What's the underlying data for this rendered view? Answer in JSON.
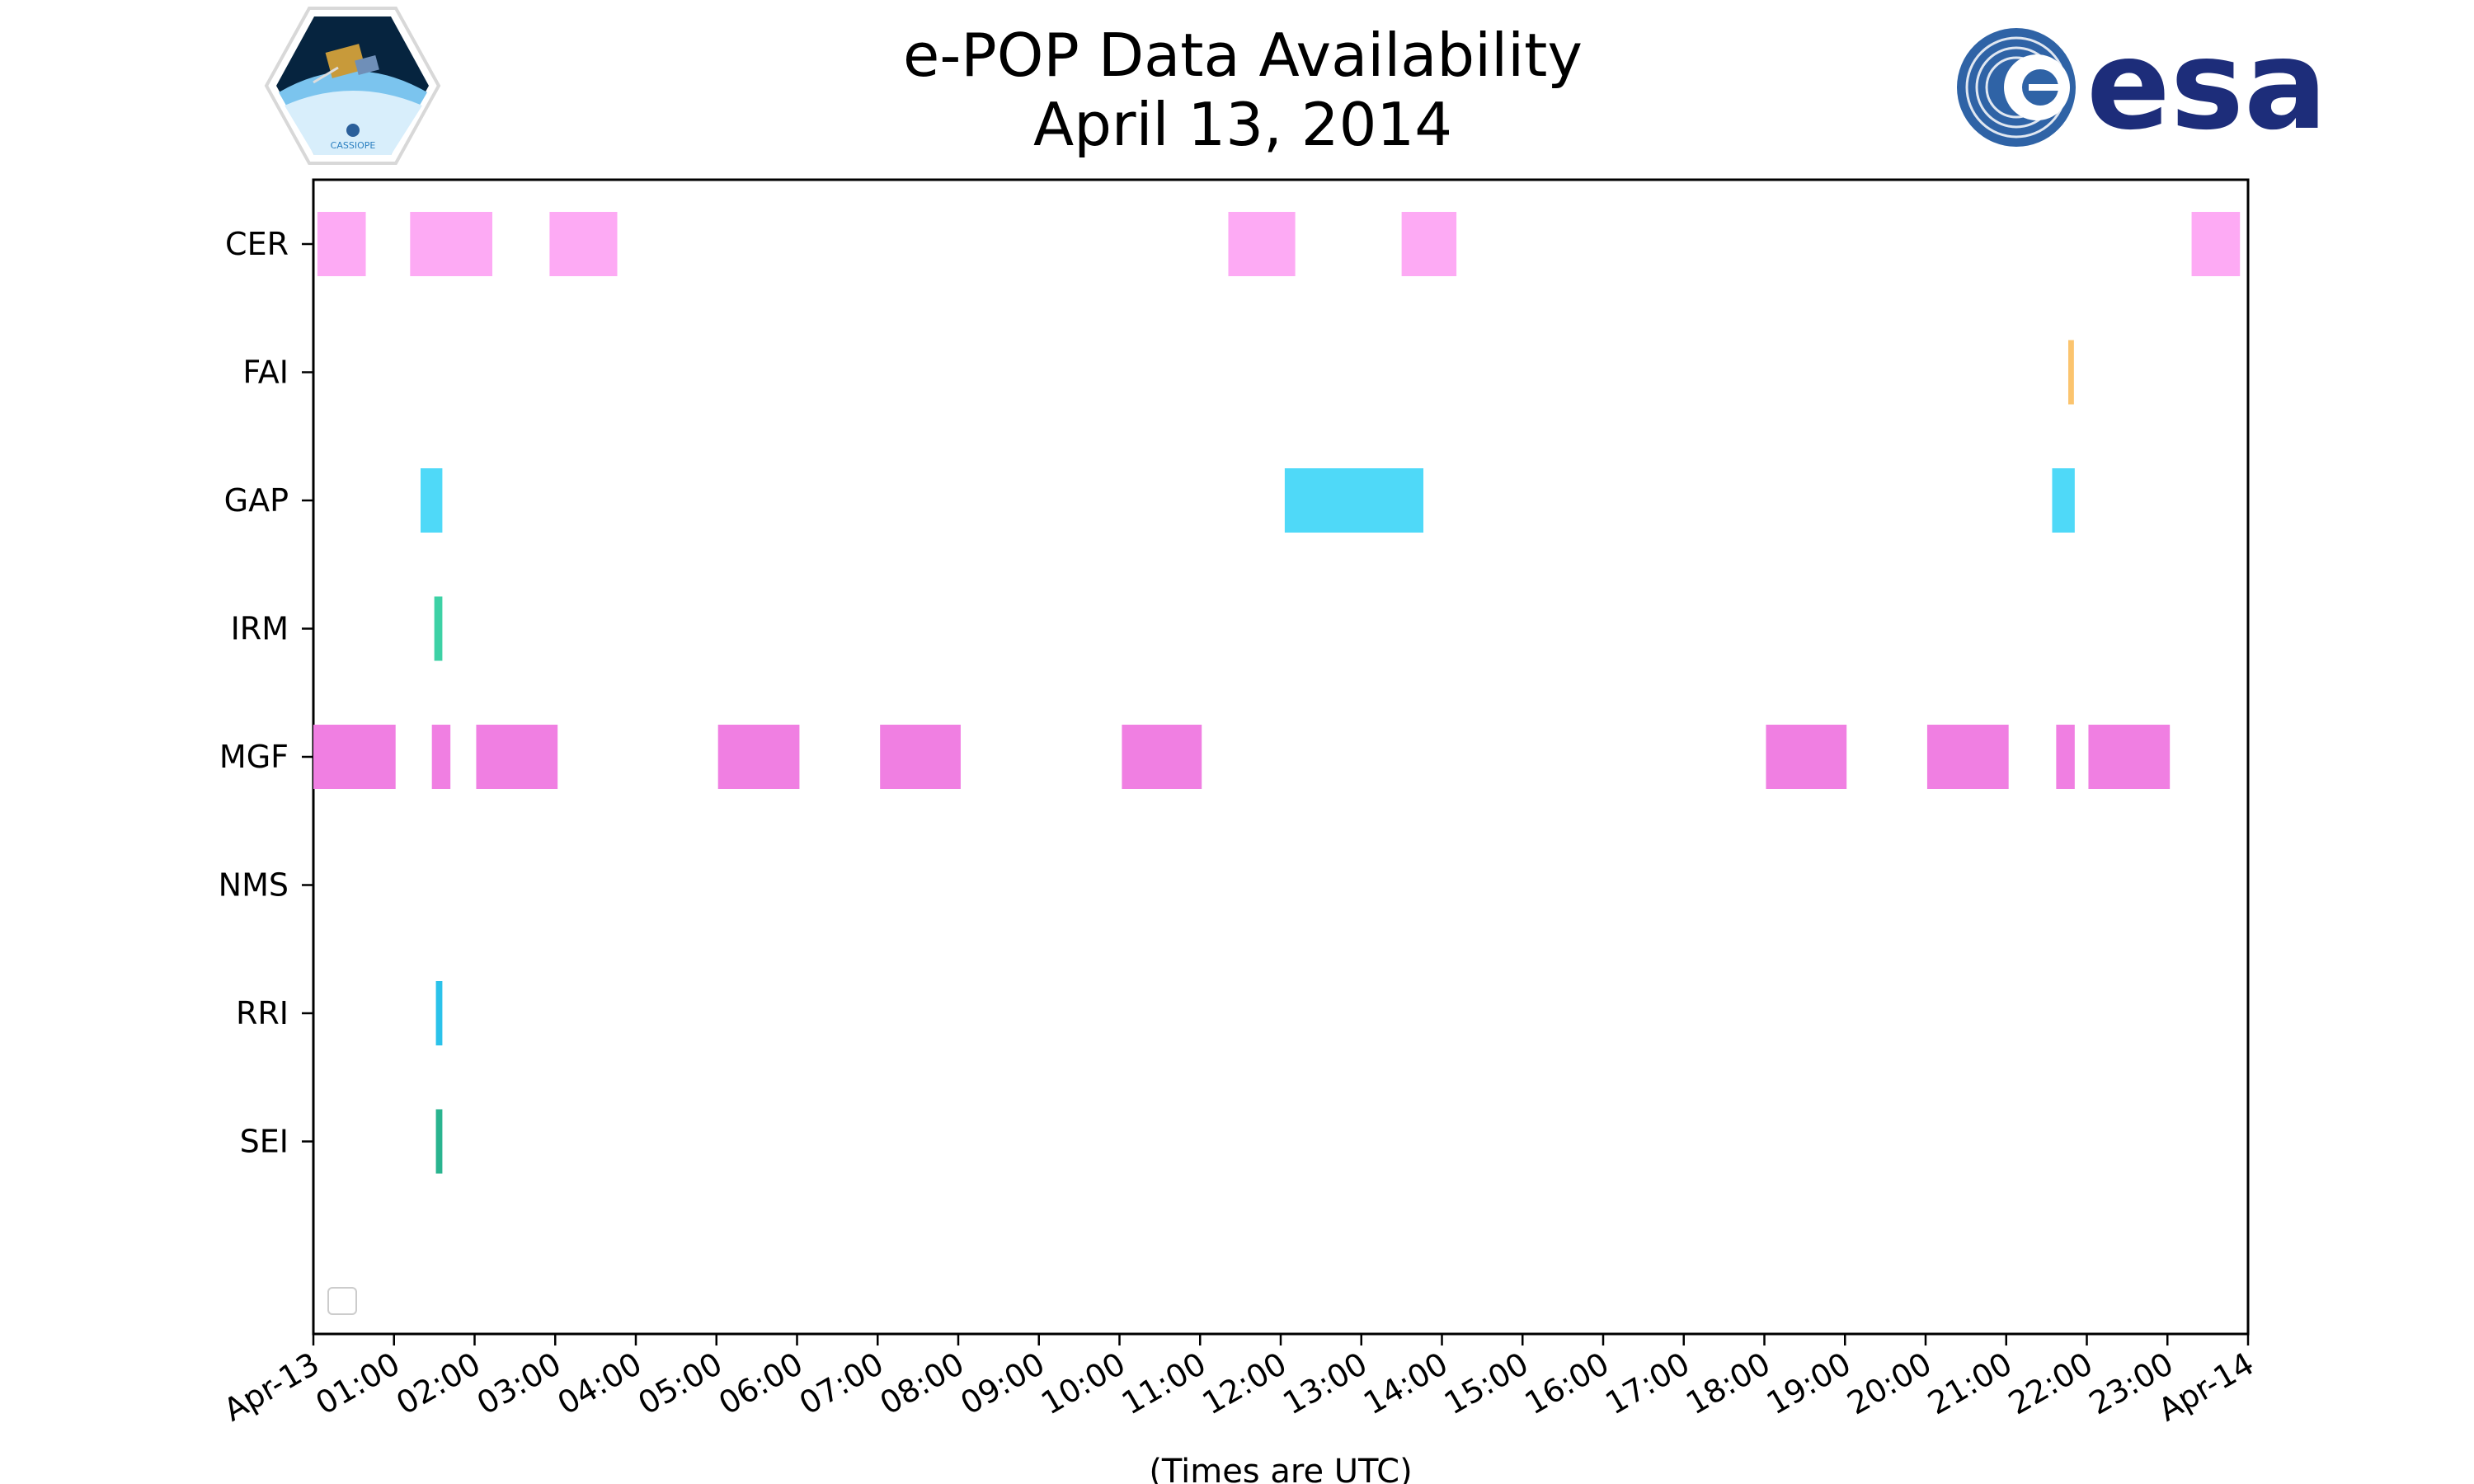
{
  "chart_data": {
    "type": "timeline",
    "title": "e-POP Data Availability",
    "subtitle": "April 13, 2014",
    "xlabel": "(Times are UTC)",
    "ylabel": "",
    "x_range_hours": [
      0,
      24
    ],
    "x_tick_labels": [
      "Apr-13",
      "01:00",
      "02:00",
      "03:00",
      "04:00",
      "05:00",
      "06:00",
      "07:00",
      "08:00",
      "09:00",
      "10:00",
      "11:00",
      "12:00",
      "13:00",
      "14:00",
      "15:00",
      "16:00",
      "17:00",
      "18:00",
      "19:00",
      "20:00",
      "21:00",
      "22:00",
      "23:00",
      "Apr-14"
    ],
    "instruments": [
      "CER",
      "FAI",
      "GAP",
      "IRM",
      "MGF",
      "NMS",
      "RRI",
      "SEI"
    ],
    "legend": "bottom-left (empty)",
    "grid": false,
    "series": [
      {
        "name": "CER",
        "color": "#fdaaf4",
        "intervals": [
          [
            0.05,
            0.65
          ],
          [
            1.2,
            2.22
          ],
          [
            2.93,
            3.77
          ],
          [
            11.35,
            12.18
          ],
          [
            13.5,
            14.18
          ],
          [
            23.3,
            23.9
          ]
        ]
      },
      {
        "name": "FAI",
        "color": "#fbc46e",
        "intervals": [
          [
            21.77,
            21.84
          ]
        ]
      },
      {
        "name": "GAP",
        "color": "#4fd9f8",
        "intervals": [
          [
            1.33,
            1.6
          ],
          [
            12.05,
            13.77
          ],
          [
            21.57,
            21.85
          ]
        ]
      },
      {
        "name": "IRM",
        "color": "#3dd1a5",
        "intervals": [
          [
            1.5,
            1.6
          ]
        ]
      },
      {
        "name": "MGF",
        "color": "#f07fe2",
        "intervals": [
          [
            0.0,
            1.02
          ],
          [
            1.47,
            1.7
          ],
          [
            2.02,
            3.03
          ],
          [
            5.02,
            6.03
          ],
          [
            7.03,
            8.03
          ],
          [
            10.03,
            11.02
          ],
          [
            18.02,
            19.02
          ],
          [
            20.02,
            21.03
          ],
          [
            21.62,
            21.85
          ],
          [
            22.02,
            23.03
          ]
        ]
      },
      {
        "name": "NMS",
        "color": "#000000",
        "intervals": []
      },
      {
        "name": "RRI",
        "color": "#2bc2ea",
        "intervals": [
          [
            1.52,
            1.6
          ]
        ]
      },
      {
        "name": "SEI",
        "color": "#2ab48f",
        "intervals": [
          [
            1.52,
            1.6
          ]
        ]
      }
    ]
  }
}
